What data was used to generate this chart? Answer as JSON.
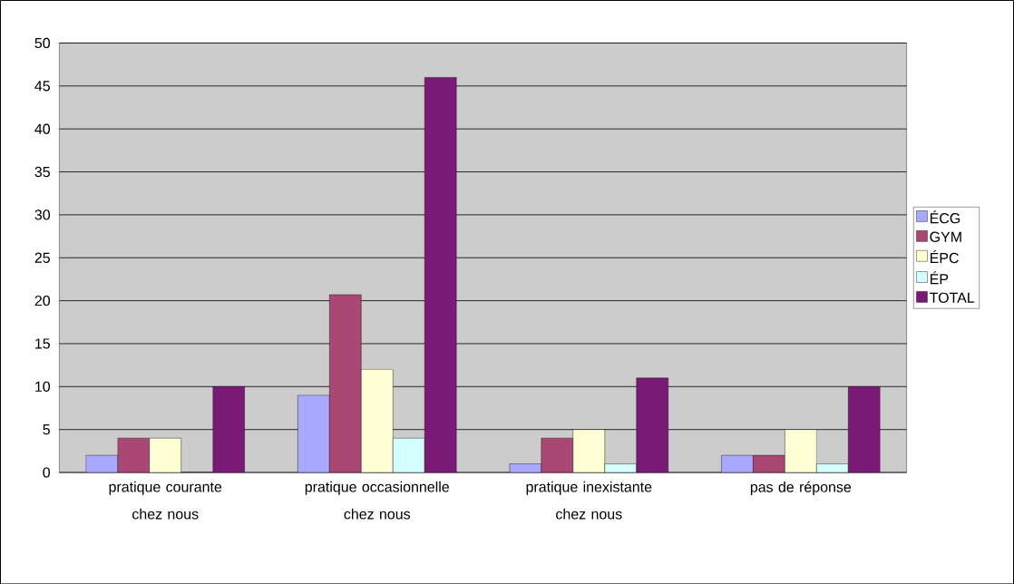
{
  "chart_data": {
    "type": "bar",
    "categories": [
      "pratique courante chez nous",
      "pratique occasionnelle chez nous",
      "pratique inexistante chez nous",
      "pas de réponse"
    ],
    "series": [
      {
        "name": "ÉCG",
        "color": "#a9aaff",
        "values": [
          2,
          9,
          1,
          2
        ]
      },
      {
        "name": "GYM",
        "color": "#a94874",
        "values": [
          4,
          20.7,
          4,
          2
        ]
      },
      {
        "name": "ÉPC",
        "color": "#ffffd5",
        "values": [
          4,
          12,
          5,
          5
        ]
      },
      {
        "name": "ÉP",
        "color": "#d5ffff",
        "values": [
          0,
          4,
          1,
          1
        ]
      },
      {
        "name": "TOTAL",
        "color": "#7a1a76",
        "values": [
          10,
          46,
          11,
          10
        ]
      }
    ],
    "ylim": [
      0,
      50
    ],
    "yticks": [
      0,
      5,
      10,
      15,
      20,
      25,
      30,
      35,
      40,
      45,
      50
    ],
    "grid": "y",
    "legend": "right"
  }
}
